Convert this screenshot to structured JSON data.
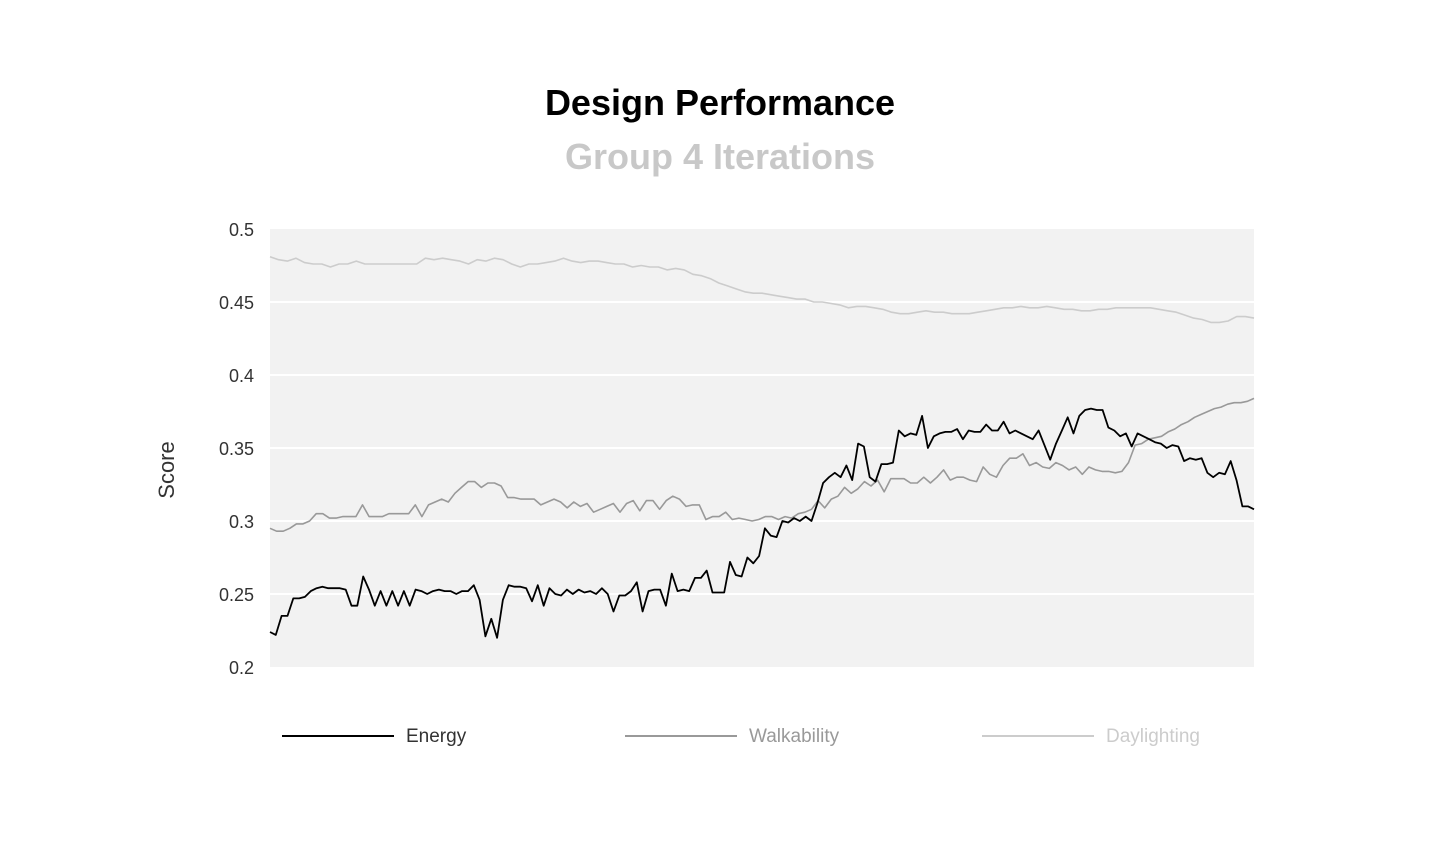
{
  "chart_data": {
    "type": "line",
    "title": "Design Performance",
    "subtitle": "Group 4 Iterations",
    "xlabel": "",
    "ylabel": "Score",
    "ylim": [
      0.2,
      0.5
    ],
    "yticks": [
      "0.5",
      "0.45",
      "0.4",
      "0.35",
      "0.3",
      "0.25",
      "0.2"
    ],
    "grid": true,
    "legend_position": "bottom",
    "series": [
      {
        "name": "Energy",
        "color": "#000000",
        "values": [
          0.224,
          0.222,
          0.235,
          0.235,
          0.247,
          0.247,
          0.248,
          0.252,
          0.254,
          0.255,
          0.254,
          0.254,
          0.254,
          0.253,
          0.242,
          0.242,
          0.262,
          0.253,
          0.242,
          0.252,
          0.242,
          0.252,
          0.242,
          0.252,
          0.242,
          0.253,
          0.252,
          0.25,
          0.252,
          0.253,
          0.252,
          0.252,
          0.25,
          0.252,
          0.252,
          0.256,
          0.246,
          0.221,
          0.233,
          0.22,
          0.246,
          0.256,
          0.255,
          0.255,
          0.254,
          0.245,
          0.256,
          0.242,
          0.254,
          0.25,
          0.249,
          0.253,
          0.25,
          0.253,
          0.251,
          0.252,
          0.25,
          0.254,
          0.25,
          0.238,
          0.249,
          0.249,
          0.252,
          0.258,
          0.238,
          0.252,
          0.253,
          0.253,
          0.242,
          0.264,
          0.252,
          0.253,
          0.252,
          0.261,
          0.261,
          0.266,
          0.251,
          0.251,
          0.251,
          0.272,
          0.263,
          0.262,
          0.275,
          0.271,
          0.276,
          0.295,
          0.29,
          0.289,
          0.3,
          0.299,
          0.302,
          0.3,
          0.303,
          0.3,
          0.312,
          0.326,
          0.33,
          0.333,
          0.33,
          0.338,
          0.328,
          0.353,
          0.351,
          0.33,
          0.327,
          0.339,
          0.339,
          0.34,
          0.362,
          0.358,
          0.36,
          0.359,
          0.372,
          0.35,
          0.358,
          0.36,
          0.361,
          0.361,
          0.363,
          0.356,
          0.362,
          0.361,
          0.361,
          0.366,
          0.362,
          0.362,
          0.368,
          0.36,
          0.362,
          0.36,
          0.358,
          0.356,
          0.362,
          0.352,
          0.342,
          0.353,
          0.362,
          0.371,
          0.36,
          0.372,
          0.376,
          0.377,
          0.376,
          0.376,
          0.364,
          0.362,
          0.358,
          0.36,
          0.351,
          0.36,
          0.358,
          0.356,
          0.354,
          0.353,
          0.35,
          0.352,
          0.351,
          0.341,
          0.343,
          0.342,
          0.343,
          0.333,
          0.33,
          0.333,
          0.332,
          0.341,
          0.328,
          0.31,
          0.31,
          0.308
        ]
      },
      {
        "name": "Walkability",
        "color": "#999999",
        "values": [
          0.295,
          0.293,
          0.293,
          0.295,
          0.298,
          0.298,
          0.3,
          0.305,
          0.305,
          0.302,
          0.302,
          0.303,
          0.303,
          0.303,
          0.311,
          0.303,
          0.303,
          0.303,
          0.305,
          0.305,
          0.305,
          0.305,
          0.311,
          0.303,
          0.311,
          0.313,
          0.315,
          0.313,
          0.319,
          0.323,
          0.327,
          0.327,
          0.323,
          0.326,
          0.326,
          0.324,
          0.316,
          0.316,
          0.315,
          0.315,
          0.315,
          0.311,
          0.313,
          0.315,
          0.313,
          0.309,
          0.313,
          0.31,
          0.312,
          0.306,
          0.308,
          0.31,
          0.312,
          0.306,
          0.312,
          0.314,
          0.307,
          0.314,
          0.314,
          0.308,
          0.314,
          0.317,
          0.315,
          0.31,
          0.311,
          0.311,
          0.301,
          0.303,
          0.303,
          0.306,
          0.301,
          0.302,
          0.301,
          0.3,
          0.301,
          0.303,
          0.303,
          0.301,
          0.303,
          0.302,
          0.305,
          0.306,
          0.308,
          0.314,
          0.309,
          0.315,
          0.317,
          0.323,
          0.319,
          0.322,
          0.327,
          0.324,
          0.328,
          0.32,
          0.329,
          0.329,
          0.329,
          0.326,
          0.326,
          0.33,
          0.326,
          0.33,
          0.335,
          0.328,
          0.33,
          0.33,
          0.328,
          0.327,
          0.337,
          0.332,
          0.33,
          0.338,
          0.343,
          0.343,
          0.346,
          0.338,
          0.34,
          0.337,
          0.336,
          0.34,
          0.338,
          0.335,
          0.337,
          0.332,
          0.337,
          0.335,
          0.334,
          0.334,
          0.333,
          0.334,
          0.34,
          0.352,
          0.353,
          0.356,
          0.357,
          0.358,
          0.361,
          0.363,
          0.366,
          0.368,
          0.371,
          0.373,
          0.375,
          0.377,
          0.378,
          0.38,
          0.381,
          0.381,
          0.382,
          0.384
        ]
      },
      {
        "name": "Daylighting",
        "color": "#cccccc",
        "values": [
          0.481,
          0.479,
          0.478,
          0.48,
          0.477,
          0.476,
          0.476,
          0.474,
          0.476,
          0.476,
          0.478,
          0.476,
          0.476,
          0.476,
          0.476,
          0.476,
          0.476,
          0.476,
          0.48,
          0.479,
          0.48,
          0.479,
          0.478,
          0.476,
          0.479,
          0.478,
          0.48,
          0.479,
          0.476,
          0.474,
          0.476,
          0.476,
          0.477,
          0.478,
          0.48,
          0.478,
          0.477,
          0.478,
          0.478,
          0.477,
          0.476,
          0.476,
          0.474,
          0.475,
          0.474,
          0.474,
          0.472,
          0.473,
          0.472,
          0.469,
          0.468,
          0.466,
          0.463,
          0.461,
          0.459,
          0.457,
          0.456,
          0.456,
          0.455,
          0.454,
          0.453,
          0.452,
          0.452,
          0.45,
          0.45,
          0.449,
          0.448,
          0.446,
          0.447,
          0.447,
          0.446,
          0.445,
          0.443,
          0.442,
          0.442,
          0.443,
          0.444,
          0.443,
          0.443,
          0.442,
          0.442,
          0.442,
          0.443,
          0.444,
          0.445,
          0.446,
          0.446,
          0.447,
          0.446,
          0.446,
          0.447,
          0.446,
          0.445,
          0.445,
          0.444,
          0.444,
          0.445,
          0.445,
          0.446,
          0.446,
          0.446,
          0.446,
          0.446,
          0.445,
          0.444,
          0.443,
          0.441,
          0.439,
          0.438,
          0.436,
          0.436,
          0.437,
          0.44,
          0.44,
          0.439
        ]
      }
    ]
  }
}
